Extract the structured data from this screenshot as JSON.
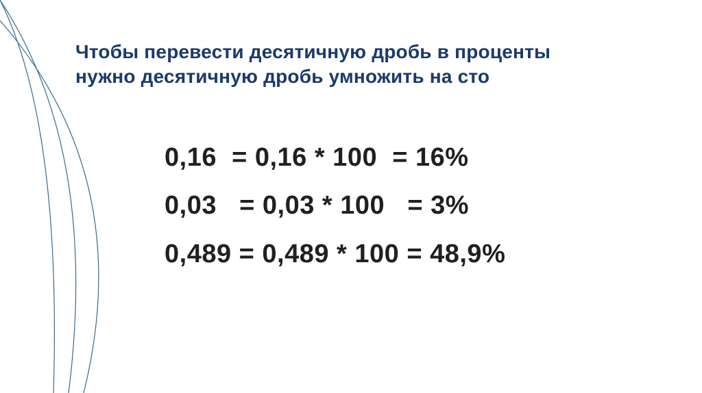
{
  "slide": {
    "title_line1": "Чтобы перевести десятичную дробь в проценты",
    "title_line2": "нужно десятичную дробь умножить  на сто",
    "title_color": "#1b3a6b",
    "title_fontsize": 28,
    "body_color": "#202020",
    "body_fontsize": 38,
    "background_color": "#ffffff",
    "equations": [
      {
        "text": "0,16  = 0,16 * 100  = 16%"
      },
      {
        "text": "0,03   = 0,03 * 100   = 3%"
      },
      {
        "text": "0,489 = 0,489 * 100 = 48,9%"
      }
    ],
    "decorative_lines": {
      "stroke_color": "#3a6a8a",
      "stroke_width": 1.2,
      "paths": [
        "M 0 0 Q 90 180 78 574",
        "M 0 0 Q 145 220 100 574",
        "M 0 30 Q 200 260 122 574"
      ]
    }
  }
}
